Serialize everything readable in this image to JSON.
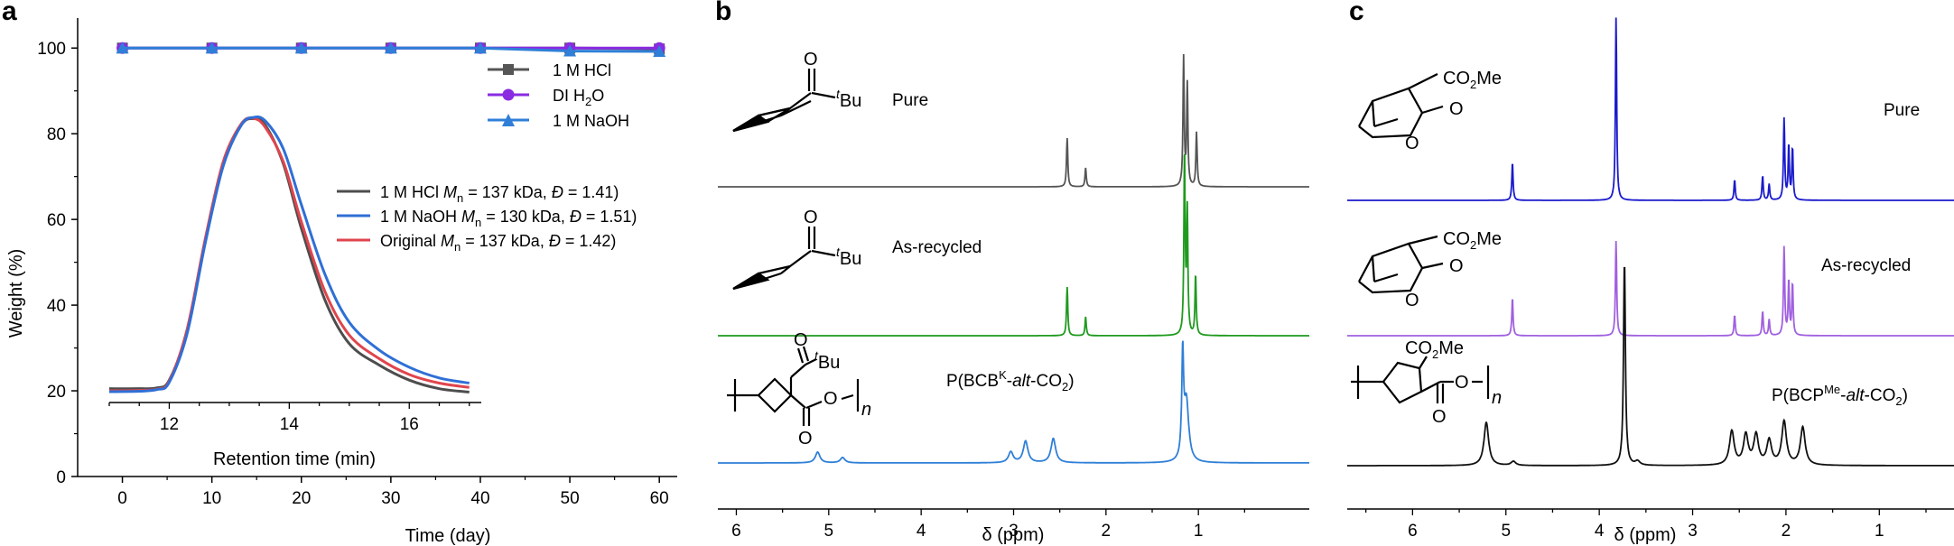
{
  "panels": {
    "a": "a",
    "b": "b",
    "c": "c"
  },
  "chart_data": [
    {
      "type": "line",
      "panel": "a",
      "xlabel": "Time (day)",
      "ylabel": "Weight (%)",
      "xlim": [
        -5,
        62
      ],
      "ylim": [
        0,
        107
      ],
      "x_ticks": [
        0,
        10,
        20,
        30,
        40,
        50,
        60
      ],
      "y_ticks": [
        0,
        20,
        40,
        60,
        80,
        100
      ],
      "legend_position": "right",
      "series": [
        {
          "name": "1 M HCl",
          "color": "#555555",
          "marker": "square",
          "x": [
            0,
            10,
            20,
            30,
            40,
            50,
            60
          ],
          "values": [
            100,
            100,
            100,
            100,
            100,
            100,
            99.8
          ]
        },
        {
          "name": "DI H2O",
          "color": "#8a2be2",
          "marker": "circle",
          "x": [
            0,
            10,
            20,
            30,
            40,
            50,
            60
          ],
          "values": [
            100,
            100,
            100,
            100,
            100,
            100,
            100
          ]
        },
        {
          "name": "1 M NaOH",
          "color": "#2f7fd8",
          "marker": "triangle",
          "x": [
            0,
            10,
            20,
            30,
            40,
            50,
            60
          ],
          "values": [
            100,
            100,
            100,
            100,
            100,
            99.3,
            99.2
          ]
        }
      ],
      "legend_labels": [
        {
          "main": "1 M HCl"
        },
        {
          "main": "DI H",
          "sub": "2",
          "tail": "O"
        },
        {
          "main": "1 M NaOH"
        }
      ]
    },
    {
      "type": "line",
      "panel": "a-inset",
      "xlabel": "Retention time (min)",
      "xlim": [
        11,
        17.2
      ],
      "x_ticks": [
        12,
        14,
        16
      ],
      "legend_position": "right",
      "series": [
        {
          "name": "1 M HCl",
          "color": "#4d4d4d",
          "x": [
            11.0,
            11.5,
            11.8,
            12.0,
            12.3,
            12.6,
            12.9,
            13.2,
            13.4,
            13.6,
            13.9,
            14.2,
            14.6,
            15.0,
            15.5,
            16.0,
            16.5,
            17.0
          ],
          "values": [
            20.5,
            20.5,
            20.7,
            22.5,
            34.0,
            55.0,
            73.0,
            82.0,
            83.5,
            82.0,
            73.0,
            58.0,
            41.0,
            31.0,
            26.0,
            22.5,
            20.5,
            19.7
          ]
        },
        {
          "name": "1 M NaOH",
          "color": "#2f6fd6",
          "x": [
            11.0,
            11.5,
            11.8,
            12.0,
            12.3,
            12.6,
            12.9,
            13.2,
            13.4,
            13.6,
            13.9,
            14.2,
            14.6,
            15.0,
            15.5,
            16.0,
            16.5,
            17.0
          ],
          "values": [
            19.8,
            19.9,
            20.3,
            22.0,
            33.5,
            54.5,
            72.5,
            82.0,
            83.8,
            83.0,
            76.5,
            63.5,
            47.0,
            36.0,
            29.5,
            25.5,
            23.0,
            21.8
          ]
        },
        {
          "name": "Original",
          "color": "#e0454d",
          "x": [
            11.0,
            11.5,
            11.8,
            12.0,
            12.3,
            12.6,
            12.9,
            13.2,
            13.4,
            13.6,
            13.9,
            14.2,
            14.6,
            15.0,
            15.5,
            16.0,
            16.5,
            17.0
          ],
          "values": [
            20.0,
            20.1,
            20.4,
            22.3,
            34.5,
            55.5,
            73.5,
            82.3,
            83.6,
            81.5,
            73.5,
            59.5,
            43.0,
            33.0,
            27.5,
            23.8,
            21.8,
            20.8
          ]
        }
      ],
      "legend_labels": [
        {
          "pre": "1 M HCl ",
          "M": "M",
          "sub": "n",
          "mid": " = 137 kDa, ",
          "D": "Đ",
          "post": " = 1.41)"
        },
        {
          "pre": "1 M NaOH ",
          "M": "M",
          "sub": "n",
          "mid": " = 130 kDa, ",
          "D": "Đ",
          "post": " = 1.51)"
        },
        {
          "pre": "Original ",
          "M": "M",
          "sub": "n",
          "mid": " = 137 kDa, ",
          "D": "Đ",
          "post": " = 1.42)"
        }
      ]
    },
    {
      "type": "line",
      "panel": "b",
      "xlabel": "δ (ppm)",
      "xlim": [
        6.2,
        -0.2
      ],
      "x_ticks": [
        6,
        5,
        4,
        3,
        2,
        1
      ],
      "spectra": [
        {
          "label": "Pure",
          "color": "#555555",
          "peaks": [
            {
              "ppm": 2.42,
              "height": 0.36
            },
            {
              "ppm": 2.22,
              "height": 0.14
            },
            {
              "ppm": 1.16,
              "height": 0.95
            },
            {
              "ppm": 1.12,
              "height": 0.75
            },
            {
              "ppm": 1.02,
              "height": 0.4
            }
          ]
        },
        {
          "label": "As-recycled",
          "color": "#1f9a1f",
          "peaks": [
            {
              "ppm": 2.42,
              "height": 0.36
            },
            {
              "ppm": 2.22,
              "height": 0.14
            },
            {
              "ppm": 1.15,
              "height": 1.35
            },
            {
              "ppm": 1.12,
              "height": 0.9
            },
            {
              "ppm": 1.03,
              "height": 0.45
            }
          ]
        },
        {
          "label": "P(BCB^K-alt-CO2)",
          "color": "#2f7fd8",
          "peaks": [
            {
              "ppm": 5.12,
              "height": 0.08
            },
            {
              "ppm": 4.85,
              "height": 0.04
            },
            {
              "ppm": 3.03,
              "height": 0.08
            },
            {
              "ppm": 2.87,
              "height": 0.16
            },
            {
              "ppm": 2.57,
              "height": 0.18
            },
            {
              "ppm": 1.17,
              "height": 0.75
            },
            {
              "ppm": 1.13,
              "height": 0.45
            }
          ]
        }
      ],
      "labels": {
        "pure": "Pure",
        "recycled": "As-recycled",
        "polymer": {
          "pre": "P(BCB",
          "sup": "K",
          "mid": "-",
          "alt": "alt",
          "post": "-CO",
          "sub": "2",
          "end": ")"
        }
      }
    },
    {
      "type": "line",
      "panel": "c",
      "xlabel": "δ (ppm)",
      "xlim": [
        6.7,
        0.2
      ],
      "x_ticks": [
        6,
        5,
        4,
        3,
        2,
        1
      ],
      "spectra": [
        {
          "label": "Pure",
          "color": "#1a1acc",
          "peaks": [
            {
              "ppm": 4.93,
              "height": 0.28
            },
            {
              "ppm": 3.82,
              "height": 1.35
            },
            {
              "ppm": 2.55,
              "height": 0.15
            },
            {
              "ppm": 2.25,
              "height": 0.18
            },
            {
              "ppm": 2.18,
              "height": 0.12
            },
            {
              "ppm": 2.02,
              "height": 0.6
            },
            {
              "ppm": 1.97,
              "height": 0.4
            },
            {
              "ppm": 1.93,
              "height": 0.38
            }
          ]
        },
        {
          "label": "As-recycled",
          "color": "#a060e0",
          "peaks": [
            {
              "ppm": 4.93,
              "height": 0.28
            },
            {
              "ppm": 3.82,
              "height": 0.7
            },
            {
              "ppm": 2.55,
              "height": 0.15
            },
            {
              "ppm": 2.25,
              "height": 0.18
            },
            {
              "ppm": 2.18,
              "height": 0.12
            },
            {
              "ppm": 2.02,
              "height": 0.65
            },
            {
              "ppm": 1.97,
              "height": 0.4
            },
            {
              "ppm": 1.93,
              "height": 0.38
            }
          ]
        },
        {
          "label": "P(BCP^Me-alt-CO2)",
          "color": "#111111",
          "peaks": [
            {
              "ppm": 5.21,
              "height": 0.32
            },
            {
              "ppm": 4.92,
              "height": 0.03
            },
            {
              "ppm": 3.73,
              "height": 1.5
            },
            {
              "ppm": 3.59,
              "height": 0.03
            },
            {
              "ppm": 2.58,
              "height": 0.25
            },
            {
              "ppm": 2.43,
              "height": 0.22
            },
            {
              "ppm": 2.32,
              "height": 0.22
            },
            {
              "ppm": 2.18,
              "height": 0.18
            },
            {
              "ppm": 2.02,
              "height": 0.32
            },
            {
              "ppm": 1.82,
              "height": 0.28
            }
          ]
        }
      ],
      "labels": {
        "pure": "Pure",
        "recycled": "As-recycled",
        "polymer": {
          "pre": "P(BCP",
          "sup": "Me",
          "mid": "-",
          "alt": "alt",
          "post": "-CO",
          "sub": "2",
          "end": ")"
        }
      }
    }
  ],
  "structures": {
    "b_tbu": {
      "sup": "t",
      "main": "Bu"
    },
    "b_carbonyl": "O",
    "b_n": "n",
    "b_ester_o": "O",
    "c_ester": {
      "pre": "CO",
      "sub": "2",
      "post": "Me"
    },
    "c_o": "O"
  }
}
